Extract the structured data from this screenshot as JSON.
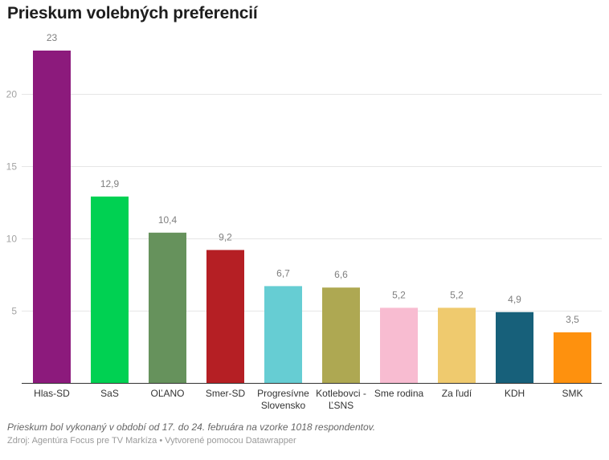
{
  "chart_data": {
    "type": "bar",
    "title": "Prieskum volebných preferencií",
    "xlabel": "",
    "ylabel": "",
    "ylim": [
      0,
      23
    ],
    "yticks": [
      5,
      10,
      15,
      20
    ],
    "grid": true,
    "categories": [
      [
        "Hlas-SD"
      ],
      [
        "SaS"
      ],
      [
        "OĽANO"
      ],
      [
        "Smer-SD"
      ],
      [
        "Progresívne",
        "Slovensko"
      ],
      [
        "Kotlebovci -",
        "ĽSNS"
      ],
      [
        "Sme rodina"
      ],
      [
        "Za ľudí"
      ],
      [
        "KDH"
      ],
      [
        "SMK"
      ]
    ],
    "values": [
      23,
      12.9,
      10.4,
      9.2,
      6.7,
      6.6,
      5.2,
      5.2,
      4.9,
      3.5
    ],
    "value_labels": [
      "23",
      "12,9",
      "10,4",
      "9,2",
      "6,7",
      "6,6",
      "5,2",
      "5,2",
      "4,9",
      "3,5"
    ],
    "colors": [
      "#8c1a7c",
      "#00d152",
      "#66925c",
      "#b51f24",
      "#66cdd3",
      "#aea852",
      "#f8bcd1",
      "#efca6e",
      "#17607a",
      "#fe910e"
    ],
    "notes": "Prieskum bol vykonaný v období od 17. do 24. februára na vzorke 1018 respondentov.",
    "source": "Zdroj: Agentúra Focus pre TV Markíza • Vytvorené pomocou Datawrapper"
  }
}
